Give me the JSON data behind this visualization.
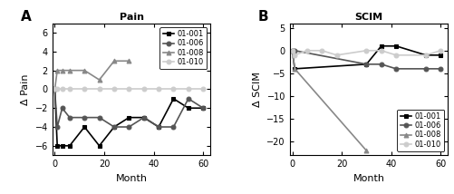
{
  "pain": {
    "title": "Pain",
    "ylabel": "Δ Pain",
    "xlabel": "Month",
    "series": {
      "01-001": {
        "x": [
          0,
          1,
          3,
          6,
          12,
          18,
          24,
          30,
          36,
          42,
          48,
          54,
          60
        ],
        "y": [
          0,
          -6,
          -6,
          -6,
          -4,
          -6,
          -4,
          -3,
          -3,
          -4,
          -1,
          -2,
          -2
        ],
        "color": "#000000",
        "marker": "s",
        "linewidth": 1.2,
        "markersize": 3.5
      },
      "01-006": {
        "x": [
          0,
          1,
          3,
          6,
          12,
          18,
          24,
          30,
          36,
          42,
          48,
          54,
          60
        ],
        "y": [
          0,
          -4,
          -2,
          -3,
          -3,
          -3,
          -4,
          -4,
          -3,
          -4,
          -4,
          -1,
          -2
        ],
        "color": "#555555",
        "marker": "o",
        "linewidth": 1.2,
        "markersize": 3.5
      },
      "01-008": {
        "x": [
          0,
          1,
          3,
          6,
          12,
          18,
          24,
          30
        ],
        "y": [
          0,
          2,
          2,
          2,
          2,
          1,
          3,
          3
        ],
        "color": "#888888",
        "marker": "^",
        "linewidth": 1.2,
        "markersize": 3.5
      },
      "01-010": {
        "x": [
          0,
          1,
          3,
          6,
          12,
          18,
          24,
          30,
          36,
          42,
          48,
          54,
          60
        ],
        "y": [
          0,
          0,
          0,
          0,
          0,
          0,
          0,
          0,
          0,
          0,
          0,
          0,
          0
        ],
        "color": "#cccccc",
        "marker": "o",
        "linewidth": 1.2,
        "markersize": 3.5
      }
    },
    "ylim": [
      -7,
      7
    ],
    "yticks": [
      -6,
      -4,
      -2,
      0,
      2,
      4,
      6
    ],
    "xlim": [
      -1,
      63
    ],
    "xticks": [
      0,
      20,
      40,
      60
    ],
    "legend_loc": "upper right"
  },
  "scim": {
    "title": "SCIM",
    "ylabel": "Δ SCIM",
    "xlabel": "Month",
    "series": {
      "01-001": {
        "x": [
          0,
          1,
          30,
          36,
          42,
          54,
          60
        ],
        "y": [
          0,
          -4,
          -3,
          1,
          1,
          -1,
          -1
        ],
        "color": "#000000",
        "marker": "s",
        "linewidth": 1.2,
        "markersize": 3.5
      },
      "01-006": {
        "x": [
          0,
          1,
          30,
          36,
          42,
          54,
          60
        ],
        "y": [
          0,
          0,
          -3,
          -3,
          -4,
          -4,
          -4
        ],
        "color": "#555555",
        "marker": "o",
        "linewidth": 1.2,
        "markersize": 3.5
      },
      "01-008": {
        "x": [
          0,
          1,
          30
        ],
        "y": [
          0,
          -4,
          -22
        ],
        "color": "#888888",
        "marker": "^",
        "linewidth": 1.2,
        "markersize": 3.5
      },
      "01-010": {
        "x": [
          0,
          1,
          6,
          12,
          18,
          30,
          36,
          42,
          54,
          60
        ],
        "y": [
          0,
          -1,
          0,
          0,
          -1,
          0,
          0,
          -1,
          -1,
          0
        ],
        "color": "#cccccc",
        "marker": "o",
        "linewidth": 1.2,
        "markersize": 3.5
      }
    },
    "ylim": [
      -23,
      6
    ],
    "yticks": [
      -20,
      -15,
      -10,
      -5,
      0,
      5
    ],
    "xlim": [
      -1,
      63
    ],
    "xticks": [
      0,
      20,
      40,
      60
    ],
    "legend_loc": "lower right"
  }
}
